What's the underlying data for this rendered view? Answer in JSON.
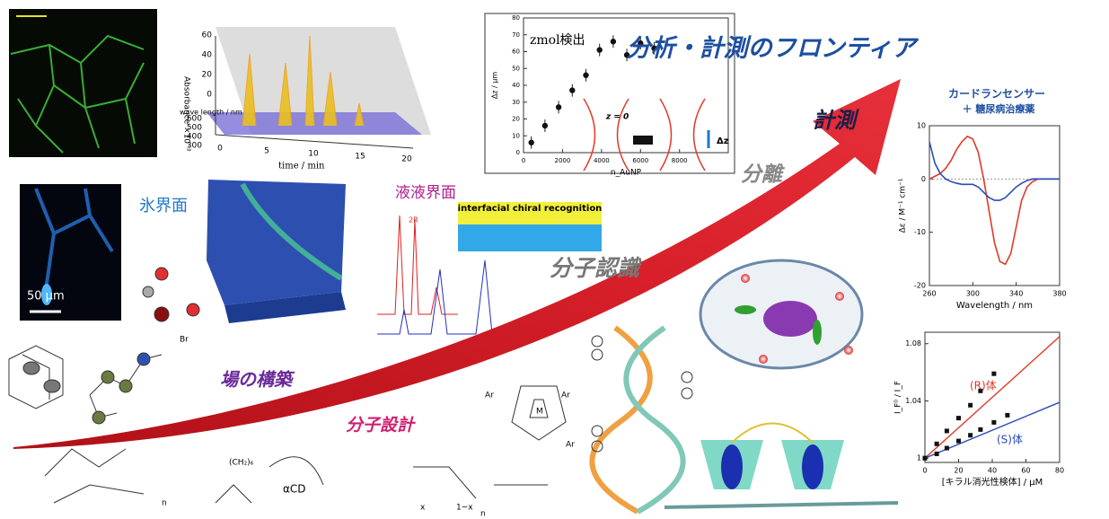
{
  "title": "分析・計測のフロンティア",
  "arrow_labels": {
    "measure": "計測",
    "separate": "分離",
    "recognition": "分子認識",
    "field": "場の構築",
    "design": "分子設計"
  },
  "micrograph": {
    "scale": "50 μm"
  },
  "ice": {
    "label": "氷界面"
  },
  "liquid": {
    "label": "液液界面",
    "inset": "interfacial chiral recognition",
    "peak": "2R"
  },
  "absorbance": {
    "ylabel": "Absorbance ×10⁻³",
    "xlabel": "time / min",
    "zlabel": "wave length / nm",
    "xticks": [
      "0",
      "5",
      "10",
      "15",
      "20"
    ],
    "yticks": [
      "0",
      "20",
      "40",
      "60"
    ],
    "zticks": [
      "300",
      "400",
      "500",
      "600"
    ]
  },
  "molecules": {
    "br": "Br",
    "cd": "αCD",
    "chain": "(CH₂)₆",
    "ar1": "Ar",
    "ar2": "Ar",
    "ar3": "Ar",
    "m": "M",
    "n1": "n",
    "n2": "n",
    "x": "x",
    "one_minus_x": "1−x"
  },
  "zmol": {
    "annotation": "zmol検出",
    "xlabel": "n_AuNP",
    "ylabel": "Δz / μm",
    "zero": "z = 0",
    "dz": "Δz",
    "xlim": [
      0,
      10500
    ],
    "ylim": [
      0,
      80
    ],
    "xticks": [
      0,
      2000,
      4000,
      6000,
      8000
    ],
    "yticks": [
      0,
      10,
      20,
      30,
      40,
      50,
      60,
      70,
      80
    ],
    "x": [
      400,
      1100,
      1800,
      2500,
      3200,
      3900,
      4600,
      5300,
      6000,
      6700
    ],
    "y": [
      6,
      16,
      27,
      37,
      46,
      61,
      66,
      58,
      65,
      62
    ]
  },
  "cd": {
    "title": "カードランセンサー",
    "subtitle": "＋ 糖尿病治療薬",
    "xlabel": "Wavelength / nm",
    "ylabel": "Δε / M⁻¹ cm⁻¹",
    "xlim": [
      260,
      380
    ],
    "ylim": [
      -20,
      10
    ],
    "xticks": [
      260,
      300,
      340,
      380
    ],
    "yticks": [
      -20,
      -10,
      0,
      10
    ],
    "x": [
      260,
      265,
      270,
      275,
      280,
      285,
      290,
      295,
      300,
      305,
      310,
      315,
      320,
      325,
      330,
      335,
      340,
      345,
      350,
      355,
      360,
      365,
      370,
      375,
      380
    ],
    "series": [
      {
        "color": "#e03a2a",
        "values": [
          0,
          0.5,
          1,
          2,
          3.5,
          5.5,
          7,
          8,
          7.5,
          5,
          0,
          -6,
          -12,
          -15.5,
          -16,
          -14,
          -9,
          -4,
          -1.5,
          -0.5,
          0,
          0,
          0,
          0,
          0
        ]
      },
      {
        "color": "#2a4bb8",
        "values": [
          7,
          3,
          1,
          0,
          -0.5,
          -0.8,
          -1,
          -1,
          -1,
          -1.5,
          -2.5,
          -3.5,
          -4,
          -4,
          -3.5,
          -2.5,
          -1.5,
          -0.8,
          -0.3,
          0,
          0,
          0,
          0,
          0,
          0
        ]
      }
    ]
  },
  "fluor": {
    "xlabel": "[キラル消光性検体] / μM",
    "ylabel": "I_F⁰ / I_F",
    "xlim": [
      0,
      80
    ],
    "ylim": [
      0.997,
      1.088
    ],
    "xticks": [
      0,
      20,
      40,
      60,
      80
    ],
    "yticks": [
      1,
      1.04,
      1.08
    ],
    "series": [
      {
        "name": "(R)体",
        "color": "#e03a2a",
        "x": [
          0,
          7,
          13,
          20,
          27,
          33,
          41
        ],
        "values": [
          1.0,
          1.01,
          1.019,
          1.028,
          1.037,
          1.047,
          1.059
        ],
        "fit_x": [
          0,
          80
        ],
        "fit": [
          1.0,
          1.085
        ]
      },
      {
        "name": "(S)体",
        "color": "#2a4bb8",
        "x": [
          0,
          7,
          13,
          20,
          27,
          33,
          41,
          49
        ],
        "values": [
          1.0,
          1.003,
          1.007,
          1.012,
          1.016,
          1.02,
          1.025,
          1.03
        ],
        "fit_x": [
          0,
          80
        ],
        "fit": [
          1.0,
          1.039
        ]
      }
    ]
  }
}
